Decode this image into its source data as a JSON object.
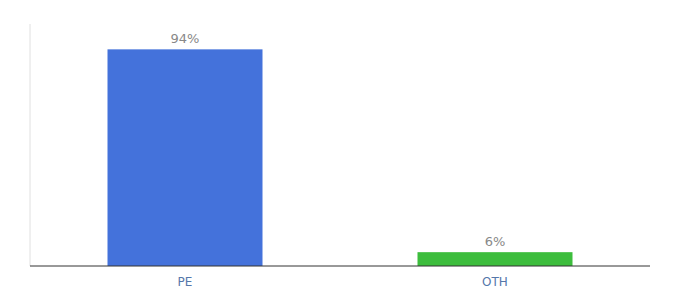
{
  "chart_data": {
    "type": "bar",
    "categories": [
      "PE",
      "OTH"
    ],
    "values": [
      94,
      6
    ],
    "value_labels": [
      "94%",
      "6%"
    ],
    "colors": [
      "#4472DB",
      "#3DBD3D"
    ],
    "ylim": [
      0,
      105
    ],
    "grid": false,
    "data_labels": true,
    "tick_labels": "x"
  }
}
